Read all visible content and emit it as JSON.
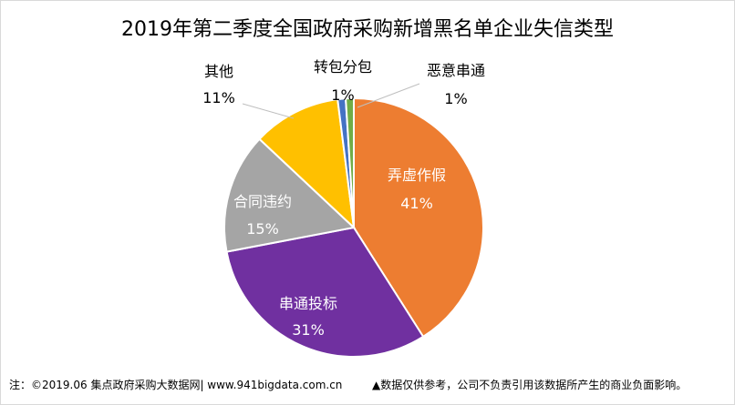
{
  "chart_data": {
    "type": "pie",
    "title": "2019年第二季度全国政府采购新增黑名单企业失信类型",
    "slices": [
      {
        "label": "弄虚作假",
        "value": 41,
        "pct": "41%",
        "color": "#ED7D31"
      },
      {
        "label": "串通投标",
        "value": 31,
        "pct": "31%",
        "color": "#7030A0"
      },
      {
        "label": "合同违约",
        "value": 15,
        "pct": "15%",
        "color": "#A5A5A5"
      },
      {
        "label": "其他",
        "value": 11,
        "pct": "11%",
        "color": "#FFC000"
      },
      {
        "label": "转包分包",
        "value": 1,
        "pct": "1%",
        "color": "#4472C4"
      },
      {
        "label": "恶意串通",
        "value": 1,
        "pct": "1%",
        "color": "#70AD47"
      }
    ],
    "legend": "none"
  },
  "footer": {
    "note": "注：©2019.06  集点政府采购大数据网| www.941bigdata.com.cn",
    "disclaimer": "▲数据仅供参考，公司不负责引用该数据所产生的商业负面影响。"
  }
}
